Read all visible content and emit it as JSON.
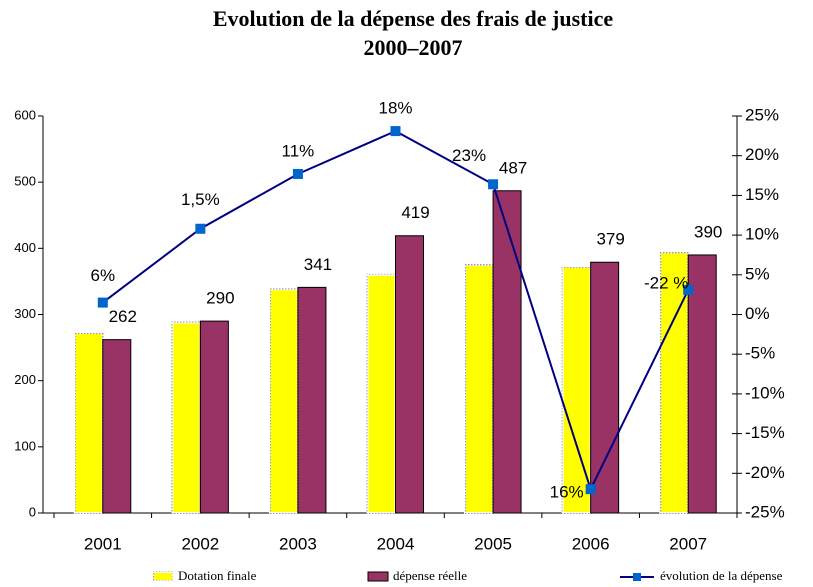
{
  "chart_data": {
    "type": "bar",
    "title": "Evolution de la dépense des frais de justice",
    "subtitle": "2000–2007",
    "categories": [
      "2001",
      "2002",
      "2003",
      "2004",
      "2005",
      "2006",
      "2007"
    ],
    "series": [
      {
        "name": "Dotation finale",
        "type": "bar",
        "color": "#ffff00",
        "values": [
          272,
          288,
          338,
          360,
          375,
          372,
          394
        ]
      },
      {
        "name": "dépense réelle",
        "type": "bar",
        "color": "#993366",
        "values": [
          262,
          290,
          341,
          419,
          487,
          379,
          390
        ],
        "show_labels": true
      },
      {
        "name": "évolution de la dépense",
        "type": "line",
        "axis": "y2",
        "color": "#000080",
        "marker_color": "#0066cc",
        "values": [
          1.5,
          10.8,
          17.7,
          23.1,
          16.4,
          -22,
          3.1
        ]
      }
    ],
    "annotations": [
      "6%",
      "1,5%",
      "11%",
      "18%",
      "23%",
      "16%",
      "-22 %"
    ],
    "ylim": [
      0,
      600
    ],
    "yticks": [
      0,
      100,
      200,
      300,
      400,
      500,
      600
    ],
    "y2lim": [
      -25,
      25
    ],
    "y2ticks": [
      {
        "value": -25,
        "label": "-25%"
      },
      {
        "value": -20,
        "label": "-20%"
      },
      {
        "value": -15,
        "label": "-15%"
      },
      {
        "value": -10,
        "label": "-10%"
      },
      {
        "value": -5,
        "label": "-5%"
      },
      {
        "value": 0,
        "label": "0%"
      },
      {
        "value": 5,
        "label": "5%"
      },
      {
        "value": 10,
        "label": "10%"
      },
      {
        "value": 15,
        "label": "15%"
      },
      {
        "value": 20,
        "label": "20%"
      },
      {
        "value": 25,
        "label": "25%"
      }
    ],
    "grid": false,
    "legend": "bottom"
  }
}
